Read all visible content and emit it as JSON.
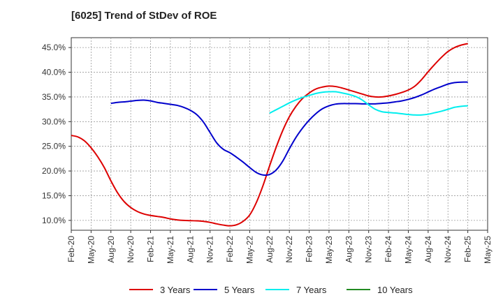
{
  "header": {
    "title": "[6025]  Trend of StDev of ROE"
  },
  "chart_data": {
    "type": "line",
    "title": "[6025]  Trend of StDev of ROE",
    "xlabel": "",
    "ylabel": "",
    "x_tick_labels": [
      "Feb-20",
      "May-20",
      "Aug-20",
      "Nov-20",
      "Feb-21",
      "May-21",
      "Aug-21",
      "Nov-21",
      "Feb-22",
      "May-22",
      "Aug-22",
      "Nov-22",
      "Feb-23",
      "May-23",
      "Aug-23",
      "Nov-23",
      "Feb-24",
      "May-24",
      "Aug-24",
      "Nov-24",
      "Feb-25",
      "May-25"
    ],
    "y_tick_labels": [
      "10.0%",
      "15.0%",
      "20.0%",
      "25.0%",
      "30.0%",
      "35.0%",
      "40.0%",
      "45.0%"
    ],
    "y_ticks": [
      10,
      15,
      20,
      25,
      30,
      35,
      40,
      45
    ],
    "ylim": [
      8,
      47
    ],
    "grid": true,
    "legend_position": "bottom",
    "series": [
      {
        "name": "3 Years",
        "color": "#dd0000",
        "points": [
          [
            "Feb-20",
            27.2
          ],
          [
            "Mar-20",
            26.9
          ],
          [
            "Apr-20",
            26.1
          ],
          [
            "May-20",
            24.7
          ],
          [
            "Jun-20",
            22.9
          ],
          [
            "Jul-20",
            20.7
          ],
          [
            "Aug-20",
            18.0
          ],
          [
            "Sep-20",
            15.6
          ],
          [
            "Oct-20",
            13.8
          ],
          [
            "Nov-20",
            12.6
          ],
          [
            "Dec-20",
            11.8
          ],
          [
            "Jan-21",
            11.3
          ],
          [
            "Feb-21",
            11.0
          ],
          [
            "Mar-21",
            10.8
          ],
          [
            "Apr-21",
            10.6
          ],
          [
            "May-21",
            10.3
          ],
          [
            "Jun-21",
            10.1
          ],
          [
            "Jul-21",
            10.0
          ],
          [
            "Aug-21",
            9.95
          ],
          [
            "Sep-21",
            9.9
          ],
          [
            "Oct-21",
            9.8
          ],
          [
            "Nov-21",
            9.6
          ],
          [
            "Dec-21",
            9.3
          ],
          [
            "Jan-22",
            9.05
          ],
          [
            "Feb-22",
            8.9
          ],
          [
            "Mar-22",
            9.1
          ],
          [
            "Apr-22",
            9.8
          ],
          [
            "May-22",
            11.1
          ],
          [
            "Jun-22",
            13.6
          ],
          [
            "Jul-22",
            17.0
          ],
          [
            "Aug-22",
            21.0
          ],
          [
            "Sep-22",
            24.8
          ],
          [
            "Oct-22",
            28.2
          ],
          [
            "Nov-22",
            31.0
          ],
          [
            "Dec-22",
            33.1
          ],
          [
            "Jan-23",
            34.7
          ],
          [
            "Feb-23",
            35.8
          ],
          [
            "Mar-23",
            36.6
          ],
          [
            "Apr-23",
            37.0
          ],
          [
            "May-23",
            37.2
          ],
          [
            "Jun-23",
            37.1
          ],
          [
            "Jul-23",
            36.8
          ],
          [
            "Aug-23",
            36.4
          ],
          [
            "Sep-23",
            36.0
          ],
          [
            "Oct-23",
            35.6
          ],
          [
            "Nov-23",
            35.2
          ],
          [
            "Dec-23",
            35.0
          ],
          [
            "Jan-24",
            35.0
          ],
          [
            "Feb-24",
            35.2
          ],
          [
            "Mar-24",
            35.5
          ],
          [
            "Apr-24",
            35.9
          ],
          [
            "May-24",
            36.4
          ],
          [
            "Jun-24",
            37.2
          ],
          [
            "Jul-24",
            38.5
          ],
          [
            "Aug-24",
            40.1
          ],
          [
            "Sep-24",
            41.6
          ],
          [
            "Oct-24",
            43.0
          ],
          [
            "Nov-24",
            44.2
          ],
          [
            "Dec-24",
            45.0
          ],
          [
            "Jan-25",
            45.5
          ],
          [
            "Feb-25",
            45.8
          ]
        ]
      },
      {
        "name": "5 Years",
        "color": "#0000cc",
        "points": [
          [
            "Aug-20",
            33.7
          ],
          [
            "Sep-20",
            33.9
          ],
          [
            "Oct-20",
            34.0
          ],
          [
            "Nov-20",
            34.15
          ],
          [
            "Dec-20",
            34.3
          ],
          [
            "Jan-21",
            34.35
          ],
          [
            "Feb-21",
            34.2
          ],
          [
            "Mar-21",
            33.9
          ],
          [
            "Apr-21",
            33.7
          ],
          [
            "May-21",
            33.5
          ],
          [
            "Jun-21",
            33.3
          ],
          [
            "Jul-21",
            32.9
          ],
          [
            "Aug-21",
            32.3
          ],
          [
            "Sep-21",
            31.4
          ],
          [
            "Oct-21",
            29.9
          ],
          [
            "Nov-21",
            27.8
          ],
          [
            "Dec-21",
            25.7
          ],
          [
            "Jan-22",
            24.4
          ],
          [
            "Feb-22",
            23.7
          ],
          [
            "Mar-22",
            22.8
          ],
          [
            "Apr-22",
            21.8
          ],
          [
            "May-22",
            20.7
          ],
          [
            "Jun-22",
            19.7
          ],
          [
            "Jul-22",
            19.2
          ],
          [
            "Aug-22",
            19.3
          ],
          [
            "Sep-22",
            20.2
          ],
          [
            "Oct-22",
            22.0
          ],
          [
            "Nov-22",
            24.5
          ],
          [
            "Dec-22",
            26.8
          ],
          [
            "Jan-23",
            28.7
          ],
          [
            "Feb-23",
            30.3
          ],
          [
            "Mar-23",
            31.6
          ],
          [
            "Apr-23",
            32.6
          ],
          [
            "May-23",
            33.2
          ],
          [
            "Jun-23",
            33.55
          ],
          [
            "Jul-23",
            33.65
          ],
          [
            "Aug-23",
            33.65
          ],
          [
            "Sep-23",
            33.65
          ],
          [
            "Oct-23",
            33.6
          ],
          [
            "Nov-23",
            33.6
          ],
          [
            "Dec-23",
            33.6
          ],
          [
            "Jan-24",
            33.7
          ],
          [
            "Feb-24",
            33.8
          ],
          [
            "Mar-24",
            34.0
          ],
          [
            "Apr-24",
            34.2
          ],
          [
            "May-24",
            34.5
          ],
          [
            "Jun-24",
            34.9
          ],
          [
            "Jul-24",
            35.4
          ],
          [
            "Aug-24",
            36.0
          ],
          [
            "Sep-24",
            36.6
          ],
          [
            "Oct-24",
            37.1
          ],
          [
            "Nov-24",
            37.6
          ],
          [
            "Dec-24",
            37.9
          ],
          [
            "Jan-25",
            38.0
          ],
          [
            "Feb-25",
            38.0
          ]
        ]
      },
      {
        "name": "7 Years",
        "color": "#00eeee",
        "points": [
          [
            "Aug-22",
            31.7
          ],
          [
            "Sep-22",
            32.4
          ],
          [
            "Oct-22",
            33.1
          ],
          [
            "Nov-22",
            33.8
          ],
          [
            "Dec-22",
            34.4
          ],
          [
            "Jan-23",
            34.9
          ],
          [
            "Feb-23",
            35.3
          ],
          [
            "Mar-23",
            35.7
          ],
          [
            "Apr-23",
            35.95
          ],
          [
            "May-23",
            36.05
          ],
          [
            "Jun-23",
            36.05
          ],
          [
            "Jul-23",
            35.8
          ],
          [
            "Aug-23",
            35.5
          ],
          [
            "Sep-23",
            35.1
          ],
          [
            "Oct-23",
            34.4
          ],
          [
            "Nov-23",
            33.4
          ],
          [
            "Dec-23",
            32.5
          ],
          [
            "Jan-24",
            32.0
          ],
          [
            "Feb-24",
            31.85
          ],
          [
            "Mar-24",
            31.75
          ],
          [
            "Apr-24",
            31.6
          ],
          [
            "May-24",
            31.45
          ],
          [
            "Jun-24",
            31.35
          ],
          [
            "Jul-24",
            31.35
          ],
          [
            "Aug-24",
            31.5
          ],
          [
            "Sep-24",
            31.8
          ],
          [
            "Oct-24",
            32.1
          ],
          [
            "Nov-24",
            32.5
          ],
          [
            "Dec-24",
            32.9
          ],
          [
            "Jan-25",
            33.1
          ],
          [
            "Feb-25",
            33.2
          ]
        ]
      },
      {
        "name": "10 Years",
        "color": "#228b22",
        "points": []
      }
    ]
  }
}
